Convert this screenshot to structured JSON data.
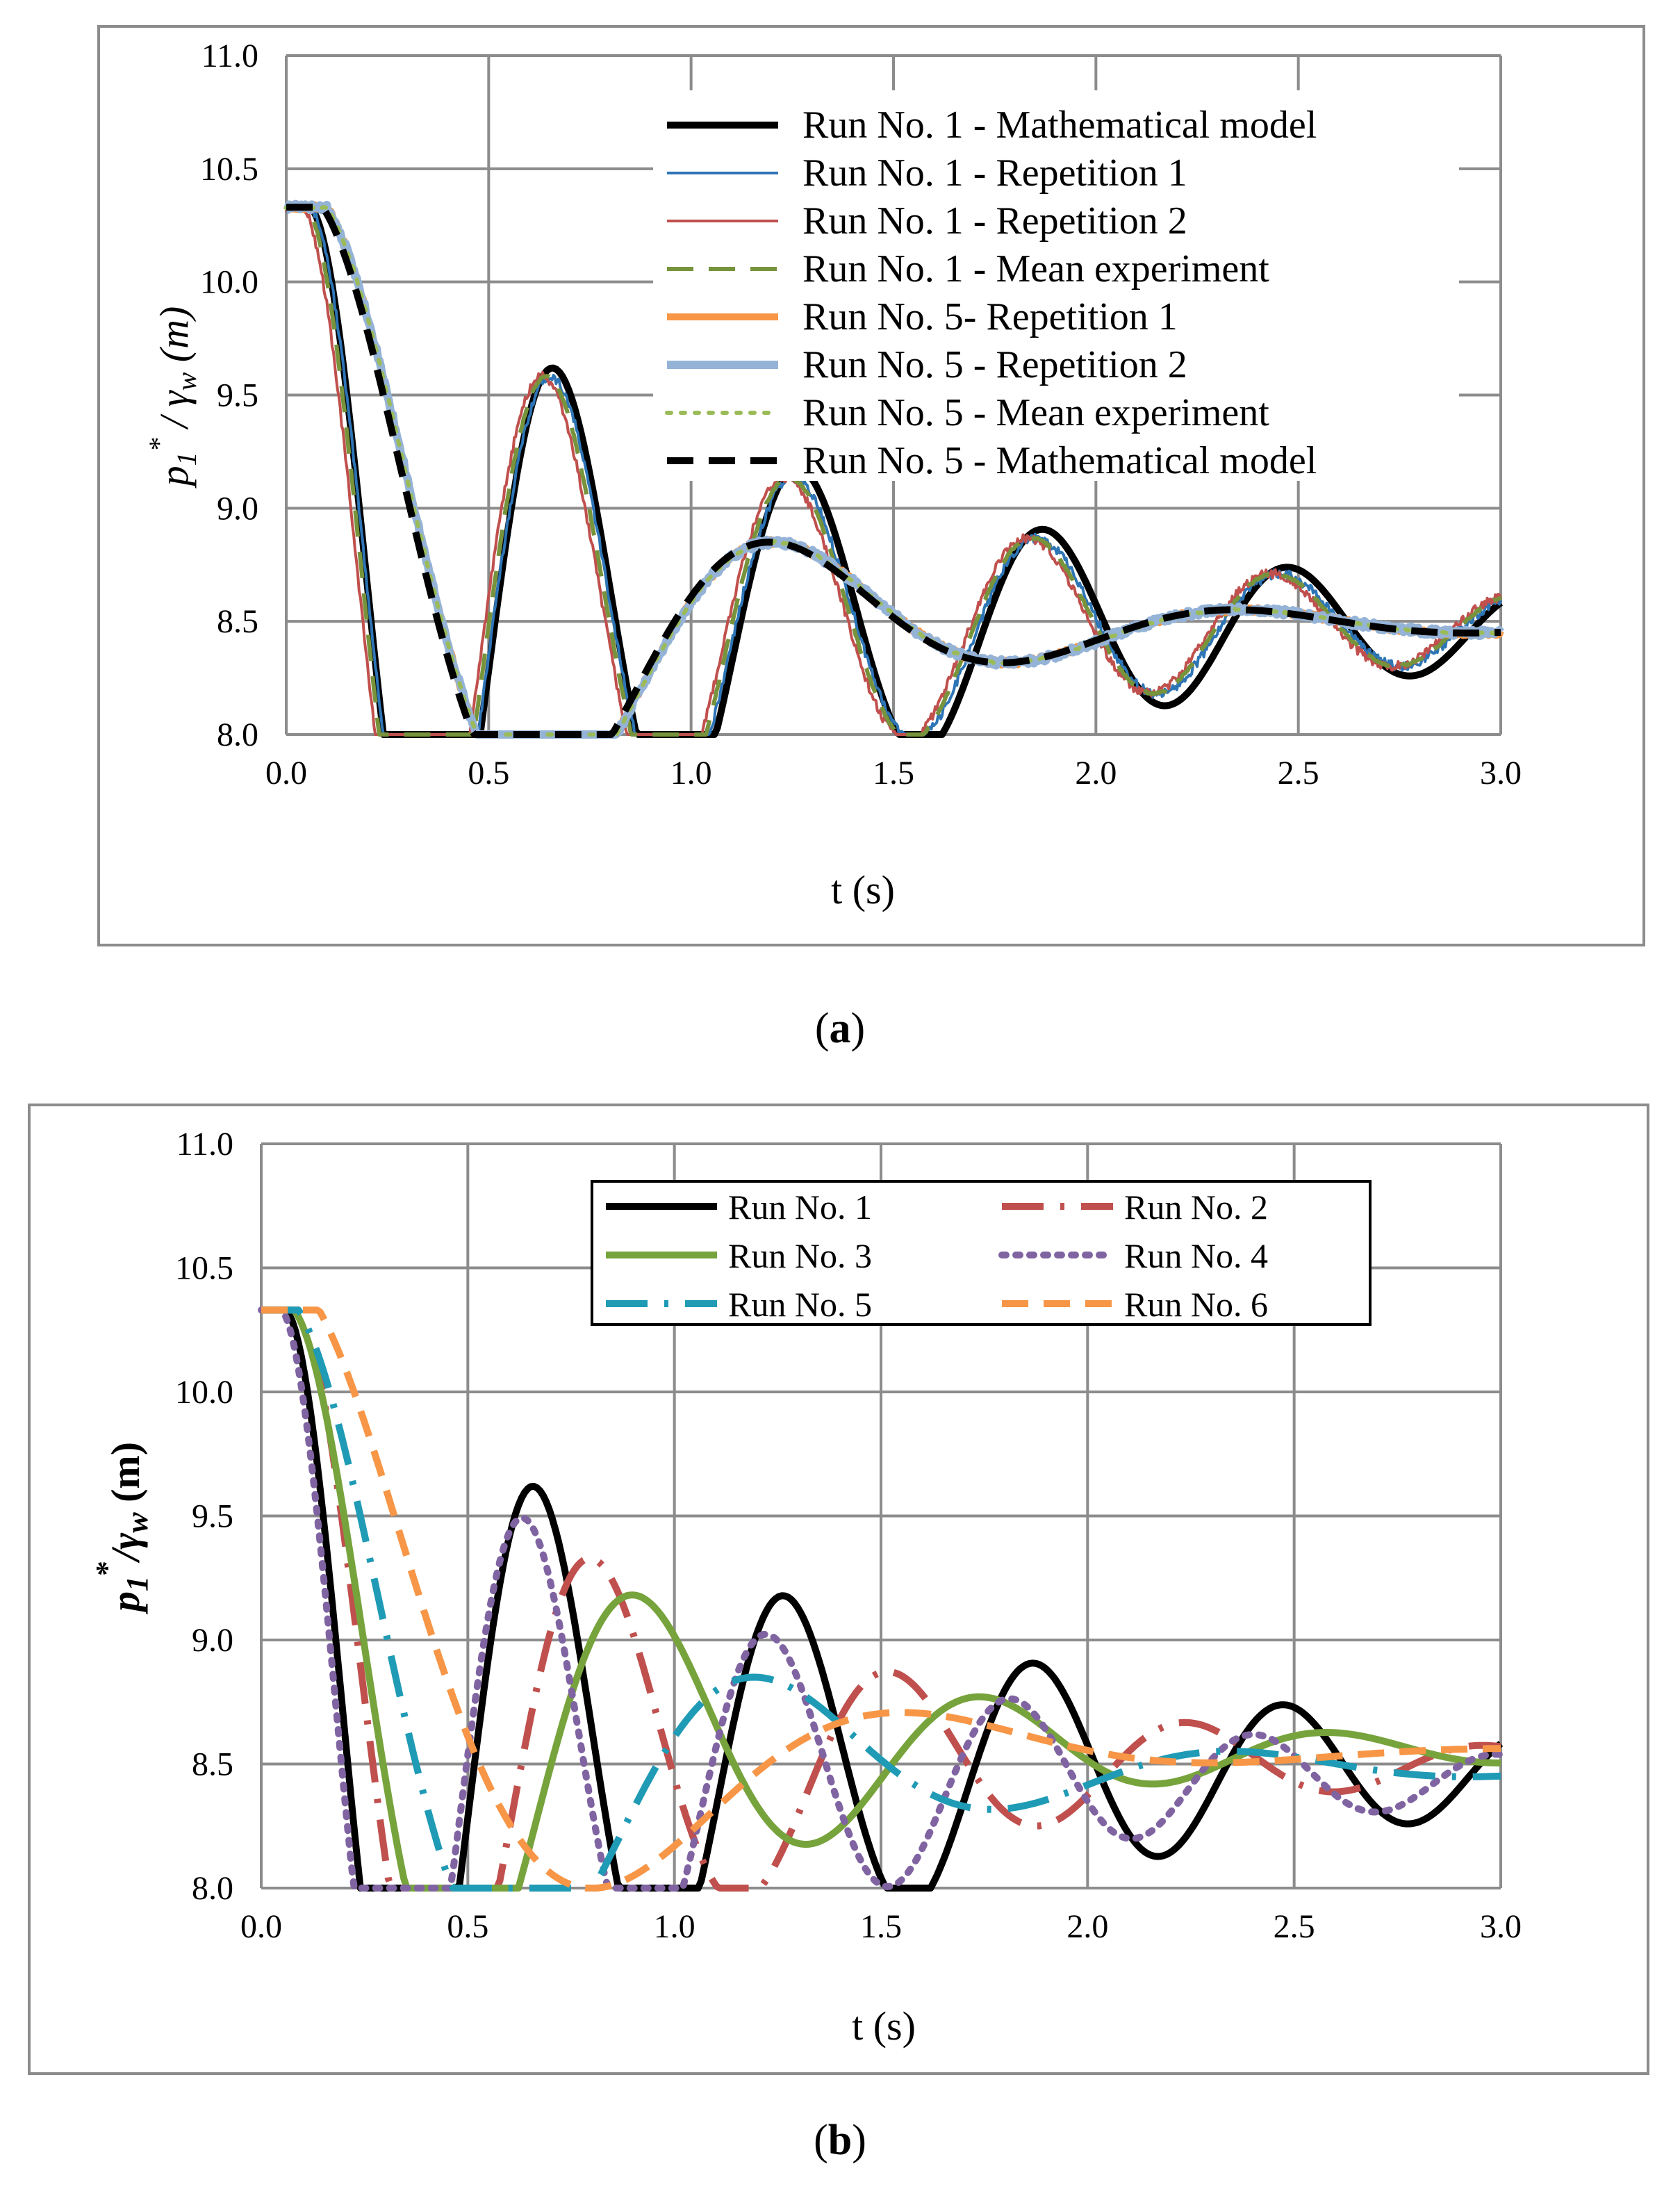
{
  "chart_data": [
    {
      "panel": "a",
      "caption_letter": "a",
      "caption_open": "(",
      "caption_close": ")",
      "type": "line",
      "ylabel": "p1*/γw (m)",
      "ylabel_main": "p",
      "ylabel_sub": "1",
      "ylabel_sup": "*",
      "ylabel_mid": " / γ",
      "ylabel_sub2": "w",
      "ylabel_unit": "(m)",
      "xlabel": "t (s)",
      "xlim": [
        0,
        3
      ],
      "ylim": [
        8,
        11
      ],
      "xticks": [
        "0.0",
        "0.5",
        "1.0",
        "1.5",
        "2.0",
        "2.5",
        "3.0"
      ],
      "yticks": [
        "8.0",
        "8.5",
        "9.0",
        "9.5",
        "10.0",
        "10.5",
        "11.0"
      ],
      "grid": true,
      "legend_position": "top-right",
      "series": [
        {
          "name": "Run No. 1 - Mathematical model",
          "color": "#000000",
          "style": "solid",
          "width": 10,
          "noise": 0,
          "params": {
            "y0": 10.33,
            "yf": 8.47,
            "a": 2.75,
            "tau": 1.25,
            "T": 0.605,
            "d": 0.06
          }
        },
        {
          "name": "Run No. 1 - Repetition 1",
          "color": "#2E75B6",
          "style": "solid",
          "width": 4,
          "noise": 0.02,
          "params": {
            "y0": 10.33,
            "yf": 8.48,
            "a": 2.75,
            "tau": 1.15,
            "T": 0.6,
            "d": 0.06
          }
        },
        {
          "name": "Run No. 1 - Repetition 2",
          "color": "#C0504D",
          "style": "solid",
          "width": 4,
          "noise": 0.02,
          "params": {
            "y0": 10.33,
            "yf": 8.48,
            "a": 2.73,
            "tau": 1.15,
            "T": 0.6,
            "d": 0.04
          }
        },
        {
          "name": "Run No. 1 - Mean experiment",
          "color": "#77933C",
          "style": "dash",
          "width": 6,
          "noise": 0.005,
          "params": {
            "y0": 10.33,
            "yf": 8.48,
            "a": 2.74,
            "tau": 1.15,
            "T": 0.6,
            "d": 0.05
          }
        },
        {
          "name": "Run No. 5- Repetition 1",
          "color": "#F79646",
          "style": "solid",
          "width": 10,
          "noise": 0.012,
          "params": {
            "y0": 10.33,
            "yf": 8.48,
            "a": 2.6,
            "tau": 0.7,
            "T": 1.15,
            "d": 0.1
          }
        },
        {
          "name": "Run No. 5 - Repetition 2",
          "color": "#95B3D7",
          "style": "solid",
          "width": 12,
          "noise": 0.015,
          "params": {
            "y0": 10.33,
            "yf": 8.48,
            "a": 2.6,
            "tau": 0.7,
            "T": 1.15,
            "d": 0.1
          }
        },
        {
          "name": "Run No. 5 - Mean experiment",
          "color": "#9BBB59",
          "style": "dot",
          "width": 6,
          "noise": 0.004,
          "params": {
            "y0": 10.33,
            "yf": 8.48,
            "a": 2.6,
            "tau": 0.7,
            "T": 1.15,
            "d": 0.1
          }
        },
        {
          "name": "Run No. 5 - Mathematical model",
          "color": "#000000",
          "style": "dash",
          "width": 10,
          "noise": 0,
          "params": {
            "y0": 10.33,
            "yf": 8.48,
            "a": 2.6,
            "tau": 0.7,
            "T": 1.15,
            "d": 0.09
          }
        }
      ]
    },
    {
      "panel": "b",
      "caption_letter": "b",
      "caption_open": "(",
      "caption_close": ")",
      "type": "line",
      "ylabel": "p1*/γw (m)",
      "ylabel_main": "p",
      "ylabel_sub": "1",
      "ylabel_sup": "*",
      "ylabel_mid": "/γ",
      "ylabel_sub2": "w",
      "ylabel_unit": "(m)",
      "xlabel": "t (s)",
      "xlim": [
        0,
        3
      ],
      "ylim": [
        8,
        11
      ],
      "xticks": [
        "0.0",
        "0.5",
        "1.0",
        "1.5",
        "2.0",
        "2.5",
        "3.0"
      ],
      "yticks": [
        "8.0",
        "8.5",
        "9.0",
        "9.5",
        "10.0",
        "10.5",
        "11.0"
      ],
      "grid": true,
      "legend_position": "top-right",
      "series": [
        {
          "name": "Run No. 1",
          "color": "#000000",
          "style": "solid",
          "width": 10,
          "noise": 0,
          "params": {
            "y0": 10.33,
            "yf": 8.47,
            "a": 2.75,
            "tau": 1.25,
            "T": 0.605,
            "d": 0.06
          }
        },
        {
          "name": "Run No. 2",
          "color": "#C0504D",
          "style": "longdashdot",
          "width": 10,
          "noise": 0,
          "params": {
            "y0": 10.33,
            "yf": 8.5,
            "a": 2.4,
            "tau": 0.9,
            "T": 0.72,
            "d": 0.09
          }
        },
        {
          "name": "Run No. 3",
          "color": "#77A33C",
          "style": "solid",
          "width": 10,
          "noise": 0,
          "params": {
            "y0": 10.33,
            "yf": 8.55,
            "a": 2.3,
            "tau": 0.8,
            "T": 0.84,
            "d": 0.08
          }
        },
        {
          "name": "Run No. 4",
          "color": "#8064A2",
          "style": "dot",
          "width": 10,
          "noise": 0,
          "params": {
            "y0": 10.33,
            "yf": 8.44,
            "a": 2.5,
            "tau": 1.0,
            "T": 0.59,
            "d": 0.05
          }
        },
        {
          "name": "Run No. 5",
          "color": "#1F9BB5",
          "style": "longdashdot",
          "width": 10,
          "noise": 0,
          "params": {
            "y0": 10.33,
            "yf": 8.48,
            "a": 2.6,
            "tau": 0.7,
            "T": 1.15,
            "d": 0.09
          }
        },
        {
          "name": "Run No. 6",
          "color": "#F79646",
          "style": "dash",
          "width": 10,
          "noise": 0,
          "params": {
            "y0": 10.33,
            "yf": 8.55,
            "a": 1.9,
            "tau": 0.6,
            "T": 1.5,
            "d": 0.14
          }
        }
      ]
    }
  ]
}
